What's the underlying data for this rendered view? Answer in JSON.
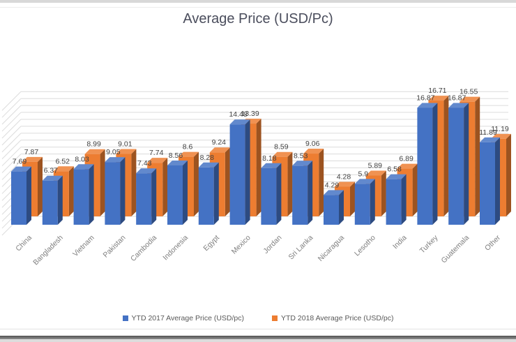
{
  "title": "Average Price (USD/Pc)",
  "legend": [
    {
      "label": "YTD 2017 Average Price (USD/pc)",
      "color": "#4472C4"
    },
    {
      "label": "YTD 2018 Average Price (USD/pc)",
      "color": "#ED7D31"
    }
  ],
  "chart_data": {
    "type": "bar",
    "projection": "3d",
    "title": "Average Price (USD/Pc)",
    "categories": [
      "China",
      "Bangladesh",
      "Vietnam",
      "Pakistan",
      "Cambodia",
      "Indonesia",
      "Egypt",
      "Mexico",
      "Jordan",
      "Sri Lanka",
      "Nicaragua",
      "Lesotho",
      "India",
      "Turkey",
      "Guatemala",
      "Other"
    ],
    "series": [
      {
        "name": "YTD 2017 Average Price (USD/pc)",
        "color": "#4472C4",
        "values": [
          7.69,
          6.37,
          8.03,
          9.05,
          7.43,
          8.56,
          8.28,
          14.48,
          8.18,
          8.53,
          4.29,
          5.9,
          6.58,
          16.87,
          16.87,
          11.89
        ]
      },
      {
        "name": "YTD 2018 Average Price (USD/pc)",
        "color": "#ED7D31",
        "values": [
          7.87,
          6.52,
          8.99,
          9.01,
          7.74,
          8.6,
          9.24,
          13.39,
          8.59,
          9.06,
          4.28,
          5.89,
          6.89,
          16.71,
          16.55,
          11.19
        ]
      }
    ],
    "ylim": [
      0,
      18
    ],
    "grid": true,
    "gridline_color": "#dcdcdc",
    "value_labels": true,
    "value_label_color": "#404040",
    "category_label_color": "#7f7f7f",
    "legend_position": "bottom",
    "xlabel": "",
    "ylabel": ""
  }
}
